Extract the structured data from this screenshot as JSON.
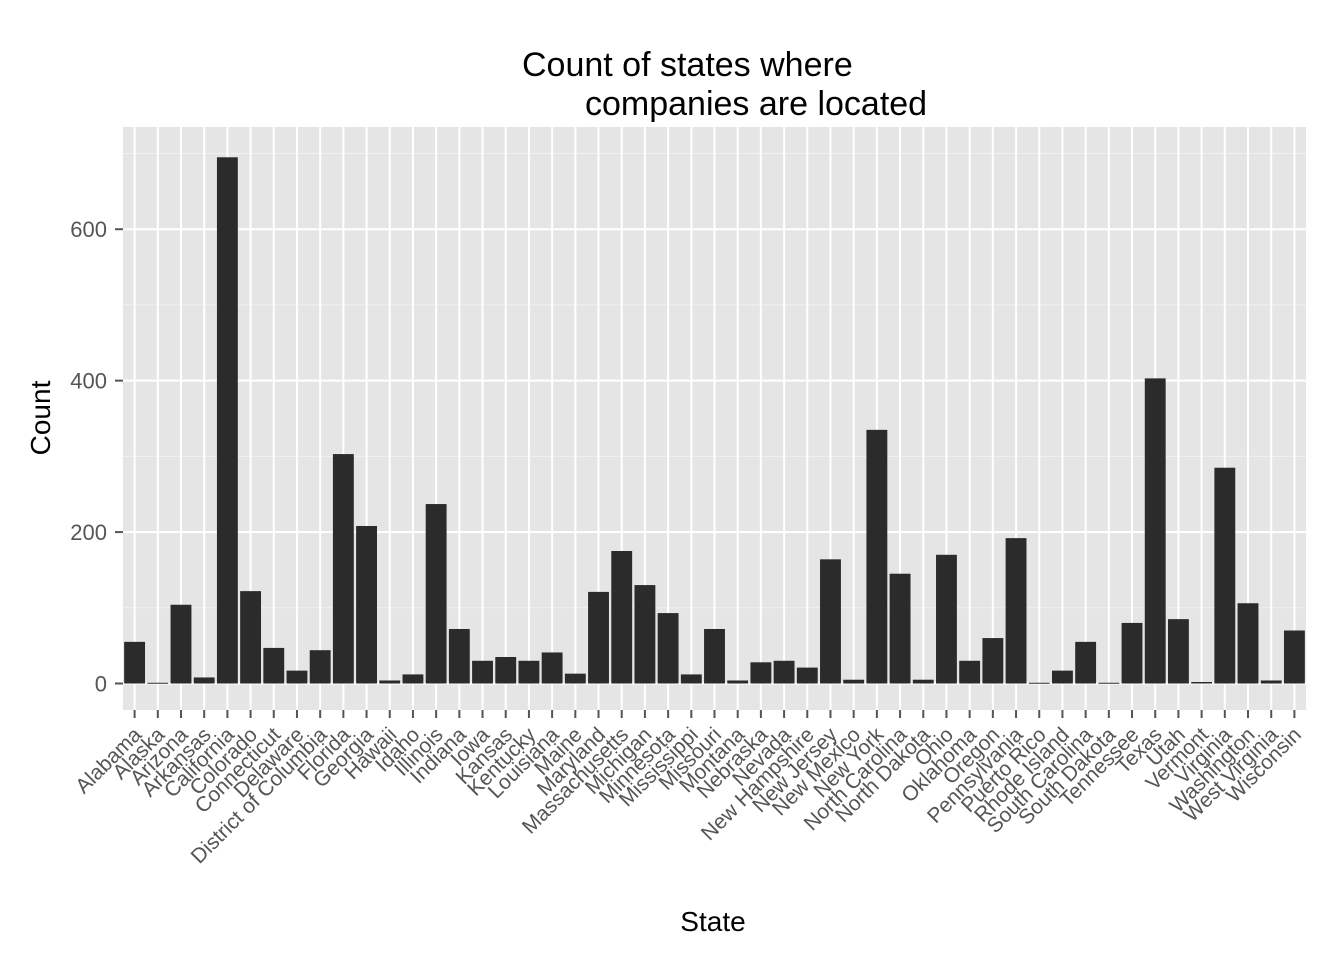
{
  "chart_data": {
    "type": "bar",
    "title": "Count of states where\n companies are located",
    "title_lines": [
      "Count of states where",
      "companies are located"
    ],
    "xlabel": "State",
    "ylabel": "Count",
    "ylim": [
      -35,
      735
    ],
    "yticks": [
      0,
      200,
      400,
      600
    ],
    "ytick_labels": [
      "0",
      "200",
      "400",
      "600"
    ],
    "grid": true,
    "bar_color": "#2b2b2b",
    "panel_color": "#e5e5e5",
    "categories": [
      "Alabama",
      "Alaska",
      "Arizona",
      "Arkansas",
      "California",
      "Colorado",
      "Connecticut",
      "Delaware",
      "District of Columbia",
      "Florida",
      "Georgia",
      "Hawaii",
      "Idaho",
      "Illinois",
      "Indiana",
      "Iowa",
      "Kansas",
      "Kentucky",
      "Louisiana",
      "Maine",
      "Maryland",
      "Massachusetts",
      "Michigan",
      "Minnesota",
      "Mississippi",
      "Missouri",
      "Montana",
      "Nebraska",
      "Nevada",
      "New Hampshire",
      "New Jersey",
      "New Mexico",
      "New York",
      "North Carolina",
      "North Dakota",
      "Ohio",
      "Oklahoma",
      "Oregon",
      "Pennsylvania",
      "Puerto Rico",
      "Rhode Island",
      "South Carolina",
      "South Dakota",
      "Tennessee",
      "Texas",
      "Utah",
      "Vermont",
      "Virginia",
      "Washington",
      "West Virginia",
      "Wisconsin"
    ],
    "values": [
      55,
      1,
      104,
      8,
      695,
      122,
      47,
      17,
      44,
      303,
      208,
      4,
      12,
      237,
      72,
      30,
      35,
      30,
      41,
      13,
      121,
      175,
      130,
      93,
      12,
      72,
      4,
      28,
      30,
      21,
      164,
      5,
      335,
      145,
      5,
      170,
      30,
      60,
      192,
      1,
      17,
      55,
      1,
      80,
      403,
      85,
      2,
      285,
      106,
      4,
      70
    ]
  }
}
